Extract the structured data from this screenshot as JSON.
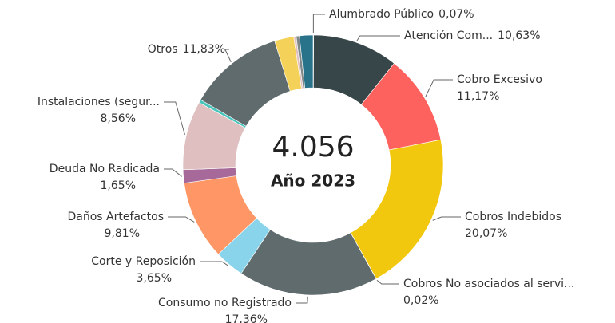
{
  "chart_data": {
    "type": "donut",
    "center_value": "4.056",
    "center_label": "Año 2023",
    "categories": [
      "Alumbrado Público",
      "Atención Com...",
      "Cobro Excesivo",
      "Cobros Indebidos",
      "Cobros No asociados al servi...",
      "Consumo no Registrado",
      "Corte y Reposición",
      "Daños Artefactos",
      "Deuda No Radicada",
      "Instalaciones (segur...",
      null,
      "Otros",
      null,
      null,
      null,
      null
    ],
    "values": [
      0.07,
      10.63,
      11.17,
      20.07,
      0.02,
      17.36,
      3.65,
      9.81,
      1.65,
      8.56,
      0.4,
      11.83,
      2.4,
      0.3,
      0.4,
      1.68
    ],
    "value_labels": [
      "0,07%",
      "10,63%",
      "11,17%",
      "20,07%",
      "0,02%",
      "17,36%",
      "3,65%",
      "9,81%",
      "1,65%",
      "8,56%",
      null,
      "11,83%",
      null,
      null,
      null,
      null
    ],
    "colors": [
      "#01b8aa",
      "#374649",
      "#fd625e",
      "#f2c80f",
      "#5f6b6d",
      "#5f6b6d",
      "#8ad4eb",
      "#fe9666",
      "#a66999",
      "#dfbfbf",
      "#4ac5bb",
      "#5f6b6d",
      "#f4d25a",
      "#dfbfbf",
      "#7f898a",
      "#28738a"
    ]
  }
}
